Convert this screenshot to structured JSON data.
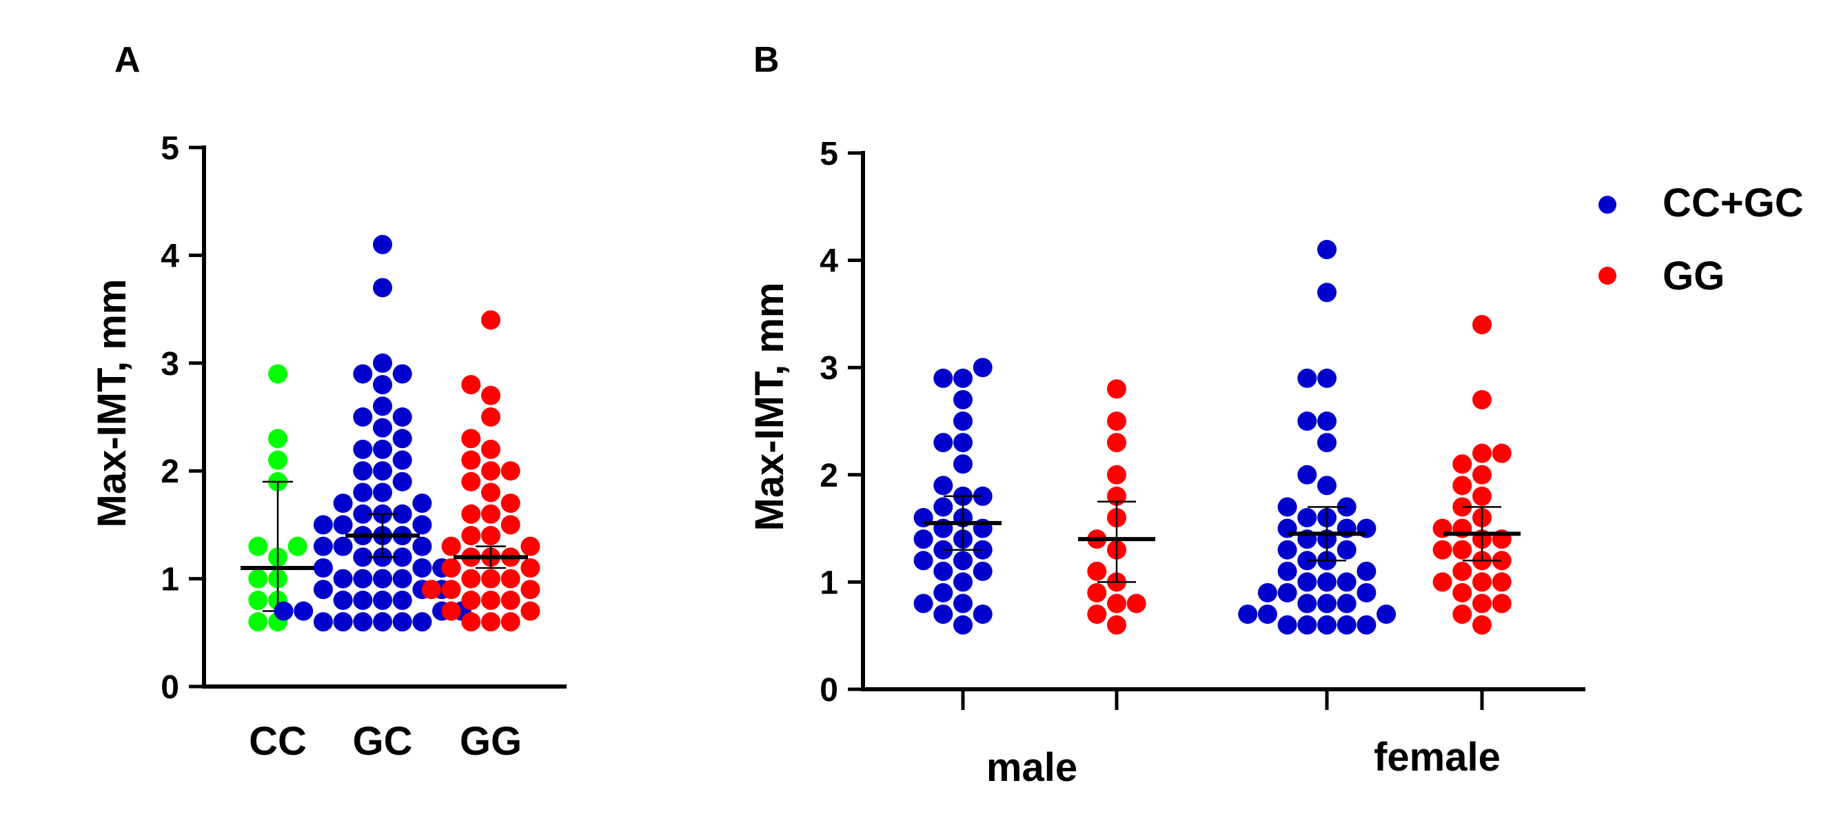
{
  "chart_data": [
    {
      "panel": "A",
      "type": "scatter",
      "title": "",
      "xlabel": "",
      "ylabel": "Max-IMT, mm",
      "ylim": [
        0,
        5
      ],
      "yticks": [
        "0",
        "1",
        "2",
        "3",
        "4",
        "5"
      ],
      "categories": [
        "CC",
        "GC",
        "GG"
      ],
      "series": [
        {
          "name": "CC",
          "color": "#00ff00",
          "center": 1.1,
          "lower": 0.7,
          "upper": 1.9,
          "values": [
            2.9,
            2.3,
            2.1,
            1.9,
            1.3,
            1.3,
            1.2,
            1.0,
            1.0,
            0.8,
            0.8,
            0.6,
            0.6
          ]
        },
        {
          "name": "GC",
          "color": "#0000cc",
          "center": 1.4,
          "lower": 1.2,
          "upper": 1.6,
          "values": [
            4.1,
            3.7,
            3.0,
            2.9,
            2.9,
            2.8,
            2.6,
            2.5,
            2.5,
            2.3,
            2.2,
            2.1,
            2.0,
            1.9,
            1.8,
            1.7,
            1.7,
            1.6,
            1.6,
            1.5,
            1.5,
            1.4,
            1.4,
            1.3,
            1.3,
            1.2,
            1.2,
            1.1,
            1.1,
            1.0,
            1.0,
            0.9,
            0.9,
            0.8,
            0.8,
            0.7,
            0.7,
            0.6,
            0.6,
            0.6,
            1.5,
            1.3,
            1.1,
            0.9,
            0.7,
            0.6,
            0.6,
            0.8,
            1.0,
            1.2,
            1.4,
            1.6,
            1.8,
            2.0,
            2.2,
            2.4,
            0.6,
            0.7,
            0.8,
            1.0
          ]
        },
        {
          "name": "GG",
          "color": "#ff0000",
          "center": 1.2,
          "lower": 1.1,
          "upper": 1.3,
          "values": [
            3.4,
            2.8,
            2.7,
            2.5,
            2.3,
            2.2,
            2.1,
            2.0,
            1.9,
            1.8,
            1.7,
            1.6,
            1.5,
            1.4,
            1.3,
            1.3,
            1.2,
            1.2,
            1.1,
            1.1,
            1.0,
            1.0,
            0.9,
            0.9,
            0.8,
            0.8,
            0.7,
            0.7,
            0.6,
            0.6,
            0.6,
            1.2,
            1.0,
            0.8,
            1.4,
            2.0,
            1.6,
            0.9
          ]
        }
      ]
    },
    {
      "panel": "B",
      "type": "scatter",
      "title": "",
      "xlabel": "",
      "ylabel": "Max-IMT, mm",
      "ylim": [
        0,
        5
      ],
      "yticks": [
        "0",
        "1",
        "2",
        "3",
        "4",
        "5"
      ],
      "categories": [
        "male",
        "female"
      ],
      "legend": {
        "position": "top-right"
      },
      "series": [
        {
          "name": "CC+GC",
          "color": "#0000cc",
          "groups": [
            {
              "category": "male",
              "center": 1.55,
              "lower": 1.3,
              "upper": 1.8,
              "values": [
                3.0,
                2.9,
                2.9,
                2.7,
                2.5,
                2.3,
                2.3,
                2.1,
                1.9,
                1.8,
                1.8,
                1.7,
                1.6,
                1.6,
                1.5,
                1.5,
                1.4,
                1.3,
                1.3,
                1.2,
                1.1,
                1.1,
                1.0,
                0.9,
                0.8,
                0.8,
                0.7,
                0.7,
                0.6,
                1.4,
                1.2
              ]
            },
            {
              "category": "female",
              "center": 1.45,
              "lower": 1.2,
              "upper": 1.7,
              "values": [
                4.1,
                3.7,
                2.9,
                2.9,
                2.5,
                2.5,
                2.3,
                2.0,
                1.9,
                1.7,
                1.7,
                1.6,
                1.5,
                1.5,
                1.4,
                1.3,
                1.3,
                1.2,
                1.1,
                1.0,
                1.0,
                0.9,
                0.9,
                0.8,
                0.8,
                0.7,
                0.7,
                0.6,
                0.6,
                0.6,
                1.6,
                1.4,
                1.1,
                0.8,
                0.6,
                1.2,
                1.0,
                0.7,
                0.9,
                0.6,
                1.5
              ]
            }
          ]
        },
        {
          "name": "GG",
          "color": "#ff0000",
          "groups": [
            {
              "category": "male",
              "center": 1.4,
              "lower": 1.0,
              "upper": 1.75,
              "values": [
                2.8,
                2.5,
                2.3,
                2.0,
                1.8,
                1.6,
                1.4,
                1.3,
                1.1,
                1.0,
                0.9,
                0.8,
                0.8,
                0.7,
                0.6
              ]
            },
            {
              "category": "female",
              "center": 1.45,
              "lower": 1.2,
              "upper": 1.7,
              "values": [
                3.4,
                2.7,
                2.2,
                2.2,
                2.1,
                2.0,
                1.9,
                1.8,
                1.7,
                1.6,
                1.5,
                1.5,
                1.4,
                1.3,
                1.3,
                1.2,
                1.1,
                1.0,
                1.0,
                0.9,
                0.8,
                0.8,
                0.7,
                0.6,
                1.4,
                1.2,
                1.0
              ]
            }
          ]
        }
      ]
    }
  ]
}
